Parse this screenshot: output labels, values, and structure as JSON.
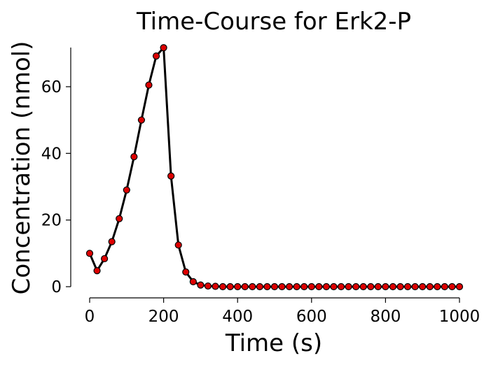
{
  "chart_data": {
    "type": "line",
    "title": "Time-Course for Erk2-P",
    "xlabel": "Time (s)",
    "ylabel": "Concentration (nmol)",
    "xlim": [
      -40,
      1000
    ],
    "ylim": [
      0,
      72
    ],
    "xticks": [
      "0",
      "200",
      "400",
      "600",
      "800",
      "1000"
    ],
    "yticks": [
      "0",
      "20",
      "40",
      "60"
    ],
    "grid": false,
    "legend": "none",
    "colors": {
      "line": "#000000",
      "marker_fill": "#dd0000",
      "marker_edge": "#000000"
    },
    "series": [
      {
        "x": [
          0,
          20,
          40,
          60,
          80,
          100,
          120,
          140,
          160,
          180,
          200,
          220,
          240,
          260,
          280,
          300,
          320,
          340,
          360,
          380,
          400,
          420,
          440,
          460,
          480,
          500,
          520,
          540,
          560,
          580,
          600,
          620,
          640,
          660,
          680,
          700,
          720,
          740,
          760,
          780,
          800,
          820,
          840,
          860,
          880,
          900,
          920,
          940,
          960,
          980,
          1000
        ],
        "y": [
          10.0,
          4.8,
          8.4,
          13.5,
          20.4,
          29.0,
          39.0,
          50.0,
          60.5,
          69.2,
          71.7,
          33.2,
          12.5,
          4.4,
          1.5,
          0.5,
          0.2,
          0.1,
          0,
          0,
          0,
          0,
          0,
          0,
          0,
          0,
          0,
          0,
          0,
          0,
          0,
          0,
          0,
          0,
          0,
          0,
          0,
          0,
          0,
          0,
          0,
          0,
          0,
          0,
          0,
          0,
          0,
          0,
          0,
          0,
          0
        ]
      }
    ]
  }
}
